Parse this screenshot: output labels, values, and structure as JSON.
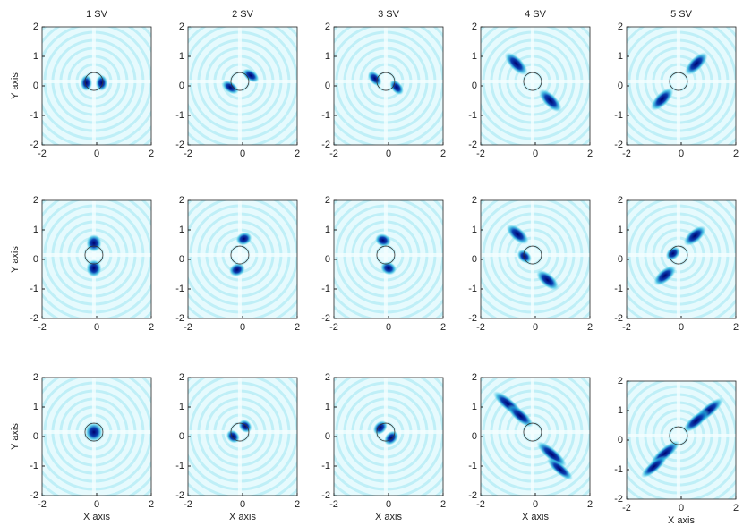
{
  "chart_data": [
    {
      "type": "heatmap",
      "title": "1 SV",
      "ylabel": "Y axis",
      "xlim": [
        -2,
        2
      ],
      "ylim": [
        -2,
        2
      ],
      "xticks": [
        -2,
        0,
        2
      ],
      "yticks": [
        -2,
        -1,
        0,
        1,
        2
      ],
      "marker": [
        -0.1,
        0.15
      ]
    },
    {
      "type": "heatmap",
      "title": "2 SV",
      "xlim": [
        -2,
        2
      ],
      "ylim": [
        -2,
        2
      ],
      "xticks": [
        -2,
        0,
        2
      ],
      "yticks": [
        -2,
        -1,
        0,
        1,
        2
      ],
      "marker": [
        -0.1,
        0.15
      ]
    },
    {
      "type": "heatmap",
      "title": "3 SV",
      "xlim": [
        -2,
        2
      ],
      "ylim": [
        -2,
        2
      ],
      "xticks": [
        -2,
        0,
        2
      ],
      "yticks": [
        -2,
        -1,
        0,
        1,
        2
      ],
      "marker": [
        -0.1,
        0.15
      ]
    },
    {
      "type": "heatmap",
      "title": "4 SV",
      "xlim": [
        -2,
        2
      ],
      "ylim": [
        -2,
        2
      ],
      "xticks": [
        -2,
        0,
        2
      ],
      "yticks": [
        -2,
        -1,
        0,
        1,
        2
      ],
      "marker": [
        -0.1,
        0.15
      ]
    },
    {
      "type": "heatmap",
      "title": "5 SV",
      "xlim": [
        -2,
        2
      ],
      "ylim": [
        -2,
        2
      ],
      "xticks": [
        -2,
        0,
        2
      ],
      "yticks": [
        -2,
        -1,
        0,
        1,
        2
      ],
      "marker": [
        -0.1,
        0.15
      ]
    },
    {
      "type": "heatmap",
      "ylabel": "Y axis",
      "xlim": [
        -2,
        2
      ],
      "ylim": [
        -2,
        2
      ],
      "xticks": [
        -2,
        0,
        2
      ],
      "yticks": [
        -2,
        -1,
        0,
        1,
        2
      ],
      "marker": [
        -0.1,
        0.15
      ]
    },
    {
      "type": "heatmap",
      "xlim": [
        -2,
        2
      ],
      "ylim": [
        -2,
        2
      ],
      "xticks": [
        -2,
        0,
        2
      ],
      "yticks": [
        -2,
        -1,
        0,
        1,
        2
      ],
      "marker": [
        -0.1,
        0.15
      ]
    },
    {
      "type": "heatmap",
      "xlim": [
        -2,
        2
      ],
      "ylim": [
        -2,
        2
      ],
      "xticks": [
        -2,
        0,
        2
      ],
      "yticks": [
        -2,
        -1,
        0,
        1,
        2
      ],
      "marker": [
        -0.1,
        0.15
      ]
    },
    {
      "type": "heatmap",
      "xlim": [
        -2,
        2
      ],
      "ylim": [
        -2,
        2
      ],
      "xticks": [
        -2,
        0,
        2
      ],
      "yticks": [
        -2,
        -1,
        0,
        1,
        2
      ],
      "marker": [
        -0.1,
        0.15
      ]
    },
    {
      "type": "heatmap",
      "xlim": [
        -2,
        2
      ],
      "ylim": [
        -2,
        2
      ],
      "xticks": [
        -2,
        0,
        2
      ],
      "yticks": [
        -2,
        -1,
        0,
        1,
        2
      ],
      "marker": [
        -0.1,
        0.15
      ]
    },
    {
      "type": "heatmap",
      "ylabel": "Y axis",
      "xlabel": "X axis",
      "xlim": [
        -2,
        2
      ],
      "ylim": [
        -2,
        2
      ],
      "xticks": [
        -2,
        0,
        2
      ],
      "yticks": [
        -2,
        -1,
        0,
        1,
        2
      ],
      "marker": [
        -0.1,
        0.15
      ]
    },
    {
      "type": "heatmap",
      "xlabel": "X axis",
      "xlim": [
        -2,
        2
      ],
      "ylim": [
        -2,
        2
      ],
      "xticks": [
        -2,
        0,
        2
      ],
      "yticks": [
        -2,
        -1,
        0,
        1,
        2
      ],
      "marker": [
        -0.1,
        0.15
      ]
    },
    {
      "type": "heatmap",
      "xlabel": "X axis",
      "xlim": [
        -2,
        2
      ],
      "ylim": [
        -2,
        2
      ],
      "xticks": [
        -2,
        0,
        2
      ],
      "yticks": [
        -2,
        -1,
        0,
        1,
        2
      ],
      "marker": [
        -0.1,
        0.15
      ]
    },
    {
      "type": "heatmap",
      "xlabel": "X axis",
      "xlim": [
        -2,
        2
      ],
      "ylim": [
        -2,
        2
      ],
      "xticks": [
        -2,
        0,
        2
      ],
      "yticks": [
        -2,
        -1,
        0,
        1,
        2
      ],
      "marker": [
        -0.1,
        0.15
      ]
    },
    {
      "type": "heatmap",
      "xlabel": "X axis",
      "xlim": [
        -2,
        2
      ],
      "ylim": [
        -2,
        2
      ],
      "xticks": [
        -2,
        0,
        2
      ],
      "yticks": [
        -2,
        -1,
        0,
        1,
        2
      ],
      "marker": [
        -0.1,
        0.15
      ]
    }
  ]
}
